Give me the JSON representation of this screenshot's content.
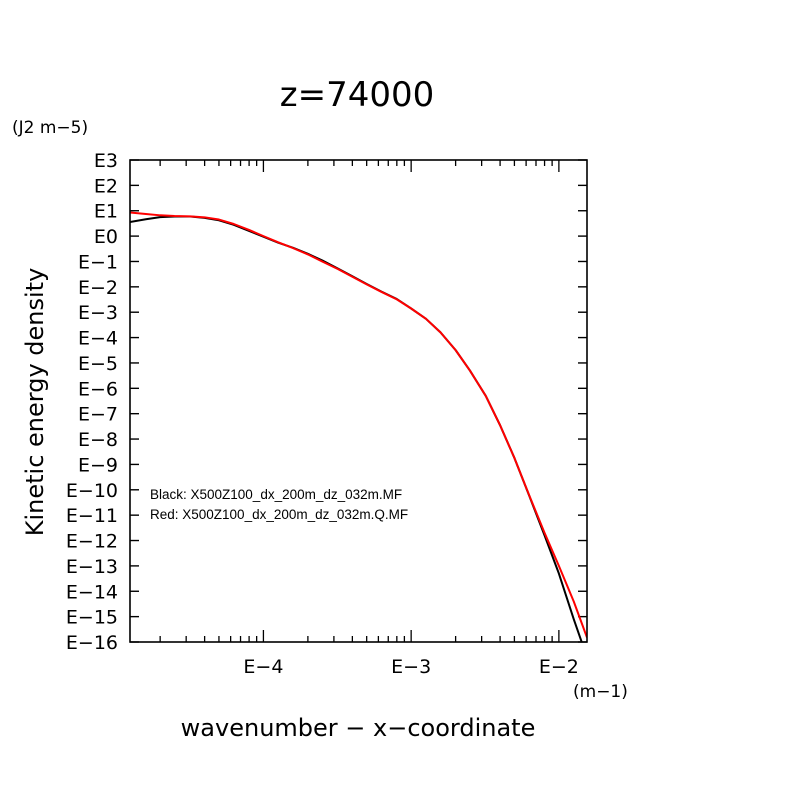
{
  "chart_data": {
    "type": "line",
    "title": "z=74000",
    "xlabel": "wavenumber − x−coordinate",
    "ylabel": "Kinetic energy density",
    "x_unit": "(m−1)",
    "y_unit": "(J2 m−5)",
    "x_scale": "log",
    "y_scale": "log",
    "xlim": [
      1.25e-05,
      0.0155
    ],
    "ylim": [
      1e-16,
      1000.0
    ],
    "x_ticks": [
      {
        "value": 0.0001,
        "label": "E−4"
      },
      {
        "value": 0.001,
        "label": "E−3"
      },
      {
        "value": 0.01,
        "label": "E−2"
      }
    ],
    "y_ticks": [
      {
        "value": 1000.0,
        "label": "E3"
      },
      {
        "value": 100.0,
        "label": "E2"
      },
      {
        "value": 10.0,
        "label": "E1"
      },
      {
        "value": 1.0,
        "label": "E0"
      },
      {
        "value": 0.1,
        "label": "E−1"
      },
      {
        "value": 0.01,
        "label": "E−2"
      },
      {
        "value": 0.001,
        "label": "E−3"
      },
      {
        "value": 0.0001,
        "label": "E−4"
      },
      {
        "value": 1e-05,
        "label": "E−5"
      },
      {
        "value": 1e-06,
        "label": "E−6"
      },
      {
        "value": 1e-07,
        "label": "E−7"
      },
      {
        "value": 1e-08,
        "label": "E−8"
      },
      {
        "value": 1e-09,
        "label": "E−9"
      },
      {
        "value": 1e-10,
        "label": "E−10"
      },
      {
        "value": 1e-11,
        "label": "E−11"
      },
      {
        "value": 1e-12,
        "label": "E−12"
      },
      {
        "value": 1e-13,
        "label": "E−13"
      },
      {
        "value": 1e-14,
        "label": "E−14"
      },
      {
        "value": 1e-15,
        "label": "E−15"
      },
      {
        "value": 1e-16,
        "label": "E−16"
      }
    ],
    "annotations": [
      "Black: X500Z100_dx_200m_dz_032m.MF",
      "Red: X500Z100_dx_200m_dz_032m.Q.MF"
    ],
    "grid": false,
    "series": [
      {
        "color": "#000000",
        "points": [
          [
            1.25e-05,
            3.6
          ],
          [
            1.6e-05,
            4.6
          ],
          [
            2e-05,
            5.6
          ],
          [
            2.5e-05,
            5.9
          ],
          [
            3.2e-05,
            5.9
          ],
          [
            4e-05,
            5.2
          ],
          [
            5e-05,
            4.2
          ],
          [
            6.3e-05,
            2.8
          ],
          [
            8e-05,
            1.6
          ],
          [
            0.0001,
            0.95
          ],
          [
            0.000126,
            0.55
          ],
          [
            0.000158,
            0.35
          ],
          [
            0.0002,
            0.2
          ],
          [
            0.00025,
            0.11
          ],
          [
            0.00032,
            0.052
          ],
          [
            0.0004,
            0.026
          ],
          [
            0.0005,
            0.013
          ],
          [
            0.00063,
            0.0065
          ],
          [
            0.0008,
            0.0033
          ],
          [
            0.001,
            0.0014
          ],
          [
            0.00126,
            0.00055
          ],
          [
            0.00158,
            0.00016
          ],
          [
            0.002,
            3.2e-05
          ],
          [
            0.0025,
            5e-06
          ],
          [
            0.0032,
            5e-07
          ],
          [
            0.004,
            3.5e-08
          ],
          [
            0.005,
            1.8e-09
          ],
          [
            0.0063,
            5.8e-11
          ],
          [
            0.008,
            1.6e-12
          ],
          [
            0.01,
            5e-14
          ],
          [
            0.0126,
            8e-16
          ],
          [
            0.0155,
            2.5e-17
          ]
        ]
      },
      {
        "color": "#ff0000",
        "points": [
          [
            1.25e-05,
            8.5
          ],
          [
            1.6e-05,
            7.4
          ],
          [
            2e-05,
            6.6
          ],
          [
            2.5e-05,
            6.2
          ],
          [
            3.2e-05,
            6.0
          ],
          [
            4e-05,
            5.5
          ],
          [
            5e-05,
            4.5
          ],
          [
            6.3e-05,
            3.0
          ],
          [
            8e-05,
            1.75
          ],
          [
            0.0001,
            1.0
          ],
          [
            0.000126,
            0.57
          ],
          [
            0.000158,
            0.34
          ],
          [
            0.0002,
            0.19
          ],
          [
            0.00025,
            0.1
          ],
          [
            0.00032,
            0.05
          ],
          [
            0.0004,
            0.025
          ],
          [
            0.0005,
            0.0125
          ],
          [
            0.00063,
            0.0063
          ],
          [
            0.0008,
            0.0032
          ],
          [
            0.001,
            0.0014
          ],
          [
            0.00126,
            0.00055
          ],
          [
            0.00158,
            0.00016
          ],
          [
            0.002,
            3.2e-05
          ],
          [
            0.0025,
            5e-06
          ],
          [
            0.0032,
            5e-07
          ],
          [
            0.004,
            3.5e-08
          ],
          [
            0.005,
            1.8e-09
          ],
          [
            0.0063,
            6e-11
          ],
          [
            0.008,
            2e-12
          ],
          [
            0.01,
            1e-13
          ],
          [
            0.0126,
            4e-15
          ],
          [
            0.0155,
            1.5e-16
          ]
        ]
      }
    ]
  }
}
